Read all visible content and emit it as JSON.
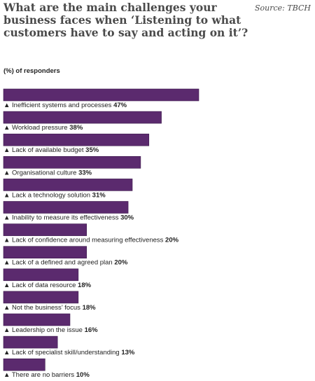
{
  "header": {
    "title": "What are the main challenges your business faces when ‘Listening to what customers have to say and acting on it’?",
    "source": "Source: TBCH",
    "subtitle": "(%) of responders"
  },
  "colors": {
    "bar": "#5b2a6e",
    "bar_edge": "#3e1c4d"
  },
  "chart_data": {
    "type": "bar",
    "orientation": "horizontal",
    "marker": "▲",
    "categories": [
      "Inefficient systems and processes",
      "Workload pressure",
      "Lack of available budget",
      "Organisational culture",
      "Lack a technology solution",
      "Inability to measure its effectiveness",
      "Lack of confidence around measuring effectiveness",
      "Lack of a defined and agreed plan",
      "Lack of data resource",
      "Not the business’ focus",
      "Leadership on the issue",
      "Lack of specialist skill/understanding",
      "There are no barriers"
    ],
    "values": [
      47,
      38,
      35,
      33,
      31,
      30,
      20,
      20,
      18,
      18,
      16,
      13,
      10
    ],
    "unit": "%"
  }
}
